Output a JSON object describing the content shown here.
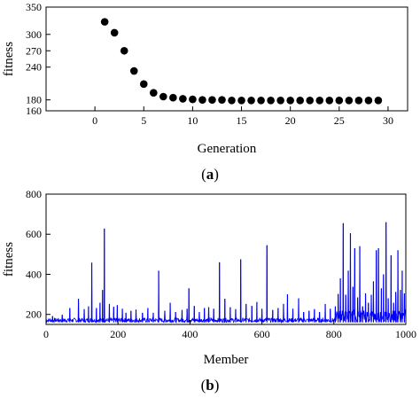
{
  "chart_data": [
    {
      "type": "scatter",
      "panel_label": "(a)",
      "panel_letter": "a",
      "xlabel": "Generation",
      "ylabel": "fitness",
      "xlim": [
        -5,
        32
      ],
      "ylim": [
        160,
        350
      ],
      "x_ticks": [
        0,
        5,
        10,
        15,
        20,
        25,
        30
      ],
      "y_ticks": [
        160,
        180,
        240,
        270,
        300,
        350
      ],
      "grid": false,
      "marker_color": "#000000",
      "series": [
        {
          "x": [
            1,
            2,
            3,
            4,
            5,
            6,
            7,
            8,
            9,
            10,
            11,
            12,
            13,
            14,
            15,
            16,
            17,
            18,
            19,
            20,
            21,
            22,
            23,
            24,
            25,
            26,
            27,
            28,
            29
          ],
          "y": [
            323,
            303,
            270,
            233,
            209,
            193,
            186,
            184,
            182,
            181,
            180,
            180,
            180,
            179,
            179,
            179,
            179,
            179,
            179,
            179,
            179,
            179,
            179,
            179,
            179,
            179,
            179,
            179,
            179
          ]
        }
      ]
    },
    {
      "type": "line",
      "panel_label": "(b)",
      "panel_letter": "b",
      "xlabel": "Member",
      "ylabel": "fitness",
      "xlim": [
        0,
        1000
      ],
      "ylim": [
        150,
        800
      ],
      "x_ticks": [
        0,
        200,
        400,
        600,
        800,
        1000
      ],
      "y_ticks": [
        200,
        400,
        600,
        800
      ],
      "grid": false,
      "line_color": "#0000ff",
      "baseline_range": [
        160,
        182
      ],
      "spikes": [
        {
          "x": 18,
          "y": 192
        },
        {
          "x": 45,
          "y": 198
        },
        {
          "x": 66,
          "y": 232
        },
        {
          "x": 90,
          "y": 278
        },
        {
          "x": 106,
          "y": 226
        },
        {
          "x": 118,
          "y": 240
        },
        {
          "x": 127,
          "y": 458
        },
        {
          "x": 140,
          "y": 232
        },
        {
          "x": 150,
          "y": 258
        },
        {
          "x": 157,
          "y": 322
        },
        {
          "x": 162,
          "y": 628
        },
        {
          "x": 176,
          "y": 252
        },
        {
          "x": 188,
          "y": 238
        },
        {
          "x": 198,
          "y": 246
        },
        {
          "x": 212,
          "y": 228
        },
        {
          "x": 222,
          "y": 208
        },
        {
          "x": 236,
          "y": 218
        },
        {
          "x": 250,
          "y": 224
        },
        {
          "x": 268,
          "y": 208
        },
        {
          "x": 283,
          "y": 232
        },
        {
          "x": 298,
          "y": 208
        },
        {
          "x": 313,
          "y": 418
        },
        {
          "x": 330,
          "y": 218
        },
        {
          "x": 345,
          "y": 258
        },
        {
          "x": 360,
          "y": 212
        },
        {
          "x": 378,
          "y": 222
        },
        {
          "x": 392,
          "y": 228
        },
        {
          "x": 397,
          "y": 330
        },
        {
          "x": 412,
          "y": 242
        },
        {
          "x": 426,
          "y": 212
        },
        {
          "x": 440,
          "y": 232
        },
        {
          "x": 452,
          "y": 236
        },
        {
          "x": 466,
          "y": 228
        },
        {
          "x": 482,
          "y": 460
        },
        {
          "x": 497,
          "y": 278
        },
        {
          "x": 512,
          "y": 236
        },
        {
          "x": 527,
          "y": 226
        },
        {
          "x": 541,
          "y": 475
        },
        {
          "x": 556,
          "y": 252
        },
        {
          "x": 572,
          "y": 242
        },
        {
          "x": 586,
          "y": 262
        },
        {
          "x": 600,
          "y": 228
        },
        {
          "x": 614,
          "y": 545
        },
        {
          "x": 630,
          "y": 222
        },
        {
          "x": 645,
          "y": 232
        },
        {
          "x": 660,
          "y": 252
        },
        {
          "x": 671,
          "y": 300
        },
        {
          "x": 686,
          "y": 228
        },
        {
          "x": 702,
          "y": 280
        },
        {
          "x": 716,
          "y": 212
        },
        {
          "x": 731,
          "y": 218
        },
        {
          "x": 746,
          "y": 226
        },
        {
          "x": 760,
          "y": 212
        },
        {
          "x": 776,
          "y": 252
        },
        {
          "x": 790,
          "y": 228
        },
        {
          "x": 804,
          "y": 240
        },
        {
          "x": 812,
          "y": 302
        },
        {
          "x": 818,
          "y": 380
        },
        {
          "x": 826,
          "y": 655
        },
        {
          "x": 833,
          "y": 298
        },
        {
          "x": 840,
          "y": 418
        },
        {
          "x": 846,
          "y": 605
        },
        {
          "x": 853,
          "y": 338
        },
        {
          "x": 858,
          "y": 530
        },
        {
          "x": 866,
          "y": 285
        },
        {
          "x": 872,
          "y": 540
        },
        {
          "x": 880,
          "y": 240
        },
        {
          "x": 888,
          "y": 305
        },
        {
          "x": 896,
          "y": 258
        },
        {
          "x": 904,
          "y": 298
        },
        {
          "x": 910,
          "y": 365
        },
        {
          "x": 918,
          "y": 520
        },
        {
          "x": 924,
          "y": 530
        },
        {
          "x": 932,
          "y": 330
        },
        {
          "x": 938,
          "y": 400
        },
        {
          "x": 945,
          "y": 660
        },
        {
          "x": 951,
          "y": 280
        },
        {
          "x": 959,
          "y": 495
        },
        {
          "x": 966,
          "y": 258
        },
        {
          "x": 972,
          "y": 312
        },
        {
          "x": 978,
          "y": 520
        },
        {
          "x": 985,
          "y": 322
        },
        {
          "x": 990,
          "y": 418
        },
        {
          "x": 996,
          "y": 305
        }
      ]
    }
  ]
}
